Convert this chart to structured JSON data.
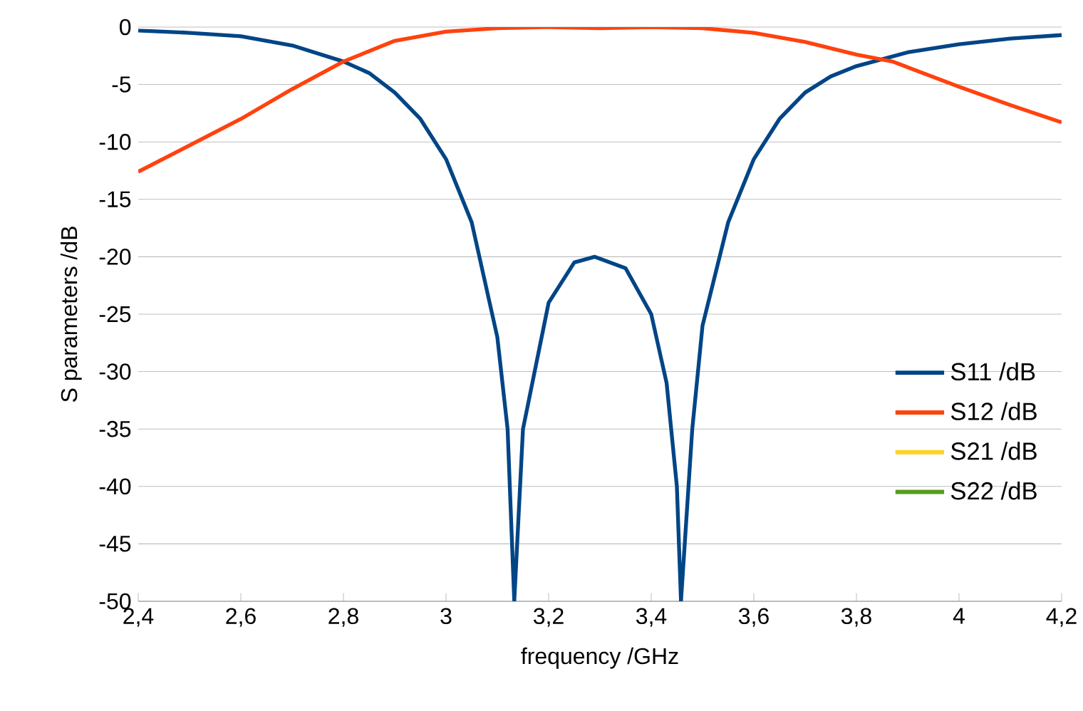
{
  "chart_data": {
    "type": "line",
    "xlabel": "frequency /GHz",
    "ylabel": "S parameters /dB",
    "series": [
      {
        "name": "S11 /dB",
        "color": "#004586",
        "x": [
          2.4,
          2.5,
          2.6,
          2.7,
          2.8,
          2.85,
          2.9,
          2.95,
          3.0,
          3.05,
          3.1,
          3.12,
          3.133,
          3.15,
          3.2,
          3.25,
          3.29,
          3.35,
          3.4,
          3.43,
          3.45,
          3.458,
          3.48,
          3.5,
          3.55,
          3.6,
          3.65,
          3.7,
          3.75,
          3.8,
          3.9,
          4.0,
          4.1,
          4.2
        ],
        "values": [
          -0.3,
          -0.5,
          -0.8,
          -1.6,
          -3.0,
          -4.0,
          -5.7,
          -8.0,
          -11.5,
          -17,
          -27,
          -35,
          -50,
          -35,
          -24,
          -20.5,
          -20,
          -21,
          -25,
          -31,
          -40,
          -50,
          -35,
          -26,
          -17,
          -11.5,
          -8,
          -5.7,
          -4.3,
          -3.4,
          -2.2,
          -1.5,
          -1.0,
          -0.7
        ]
      },
      {
        "name": "S12 /dB",
        "color": "#ff420e",
        "x": [
          2.4,
          2.5,
          2.6,
          2.7,
          2.8,
          2.9,
          3.0,
          3.1,
          3.2,
          3.3,
          3.4,
          3.5,
          3.6,
          3.7,
          3.8,
          3.87,
          3.9,
          4.0,
          4.1,
          4.2
        ],
        "values": [
          -12.6,
          -10.3,
          -8.0,
          -5.4,
          -3.0,
          -1.2,
          -0.4,
          -0.1,
          0,
          -0.1,
          0,
          -0.1,
          -0.5,
          -1.3,
          -2.4,
          -3.0,
          -3.5,
          -5.2,
          -6.8,
          -8.3
        ]
      },
      {
        "name": "S21 /dB",
        "color": "#ffd320",
        "values": [
          null
        ]
      },
      {
        "name": "S22 /dB",
        "color": "#579d1c",
        "values": [
          null
        ]
      }
    ],
    "xlim": [
      2.4,
      4.2
    ],
    "ylim": [
      -50,
      0
    ],
    "xticks": [
      {
        "value": 2.4,
        "label": "2,4"
      },
      {
        "value": 2.6,
        "label": "2,6"
      },
      {
        "value": 2.8,
        "label": "2,8"
      },
      3,
      {
        "value": 3.2,
        "label": "3,2"
      },
      {
        "value": 3.4,
        "label": "3,4"
      },
      {
        "value": 3.6,
        "label": "3,6"
      },
      {
        "value": 3.8,
        "label": "3,8"
      },
      4,
      {
        "value": 4.2,
        "label": "4,2"
      }
    ],
    "yticks": [
      0,
      -5,
      -10,
      -15,
      -20,
      -25,
      -30,
      -35,
      -40,
      -45,
      -50
    ],
    "grid": "y",
    "legend": "right",
    "marker": "none",
    "line_style": "solid"
  }
}
